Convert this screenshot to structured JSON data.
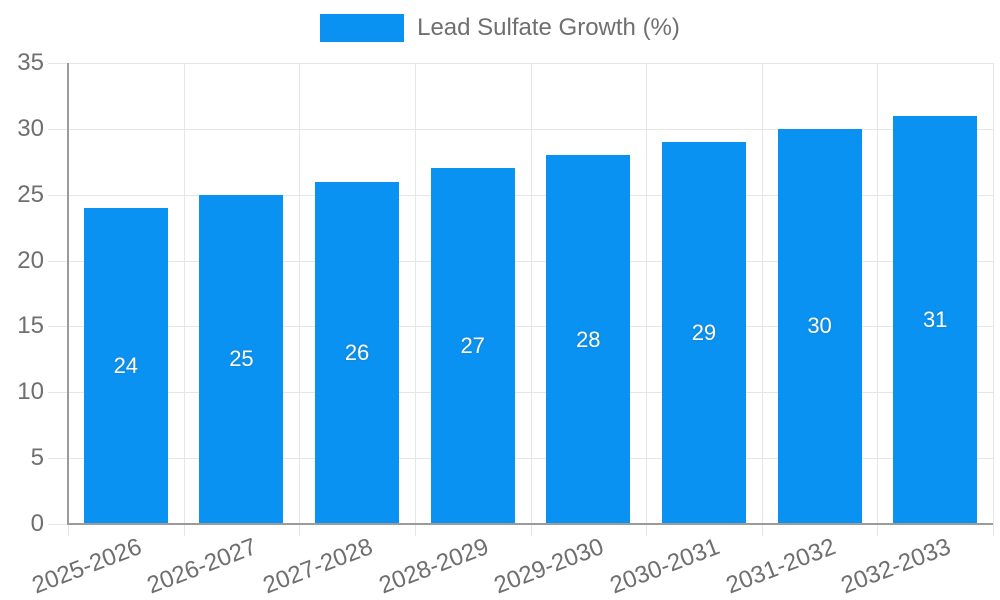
{
  "chart_data": {
    "type": "bar",
    "title": "",
    "legend": "Lead Sulfate Growth (%)",
    "legend_position": "top-center",
    "categories": [
      "2025-2026",
      "2026-2027",
      "2027-2028",
      "2028-2029",
      "2029-2030",
      "2030-2031",
      "2031-2032",
      "2032-2033"
    ],
    "values": [
      24,
      25,
      26,
      27,
      28,
      29,
      30,
      31
    ],
    "value_labels_shown": true,
    "xlabel": "",
    "ylabel": "",
    "ylim": [
      0,
      35
    ],
    "ytick_step": 5,
    "grid": "on",
    "colors": {
      "bar_fill": "#0992f2",
      "gridline": "#e6e6e6",
      "axis_line": "#9b9b9b",
      "tick_text": "#6f6f6f",
      "legend_text": "#6f6f6f",
      "value_label_text": "#ffffff",
      "background": "#ffffff"
    }
  }
}
